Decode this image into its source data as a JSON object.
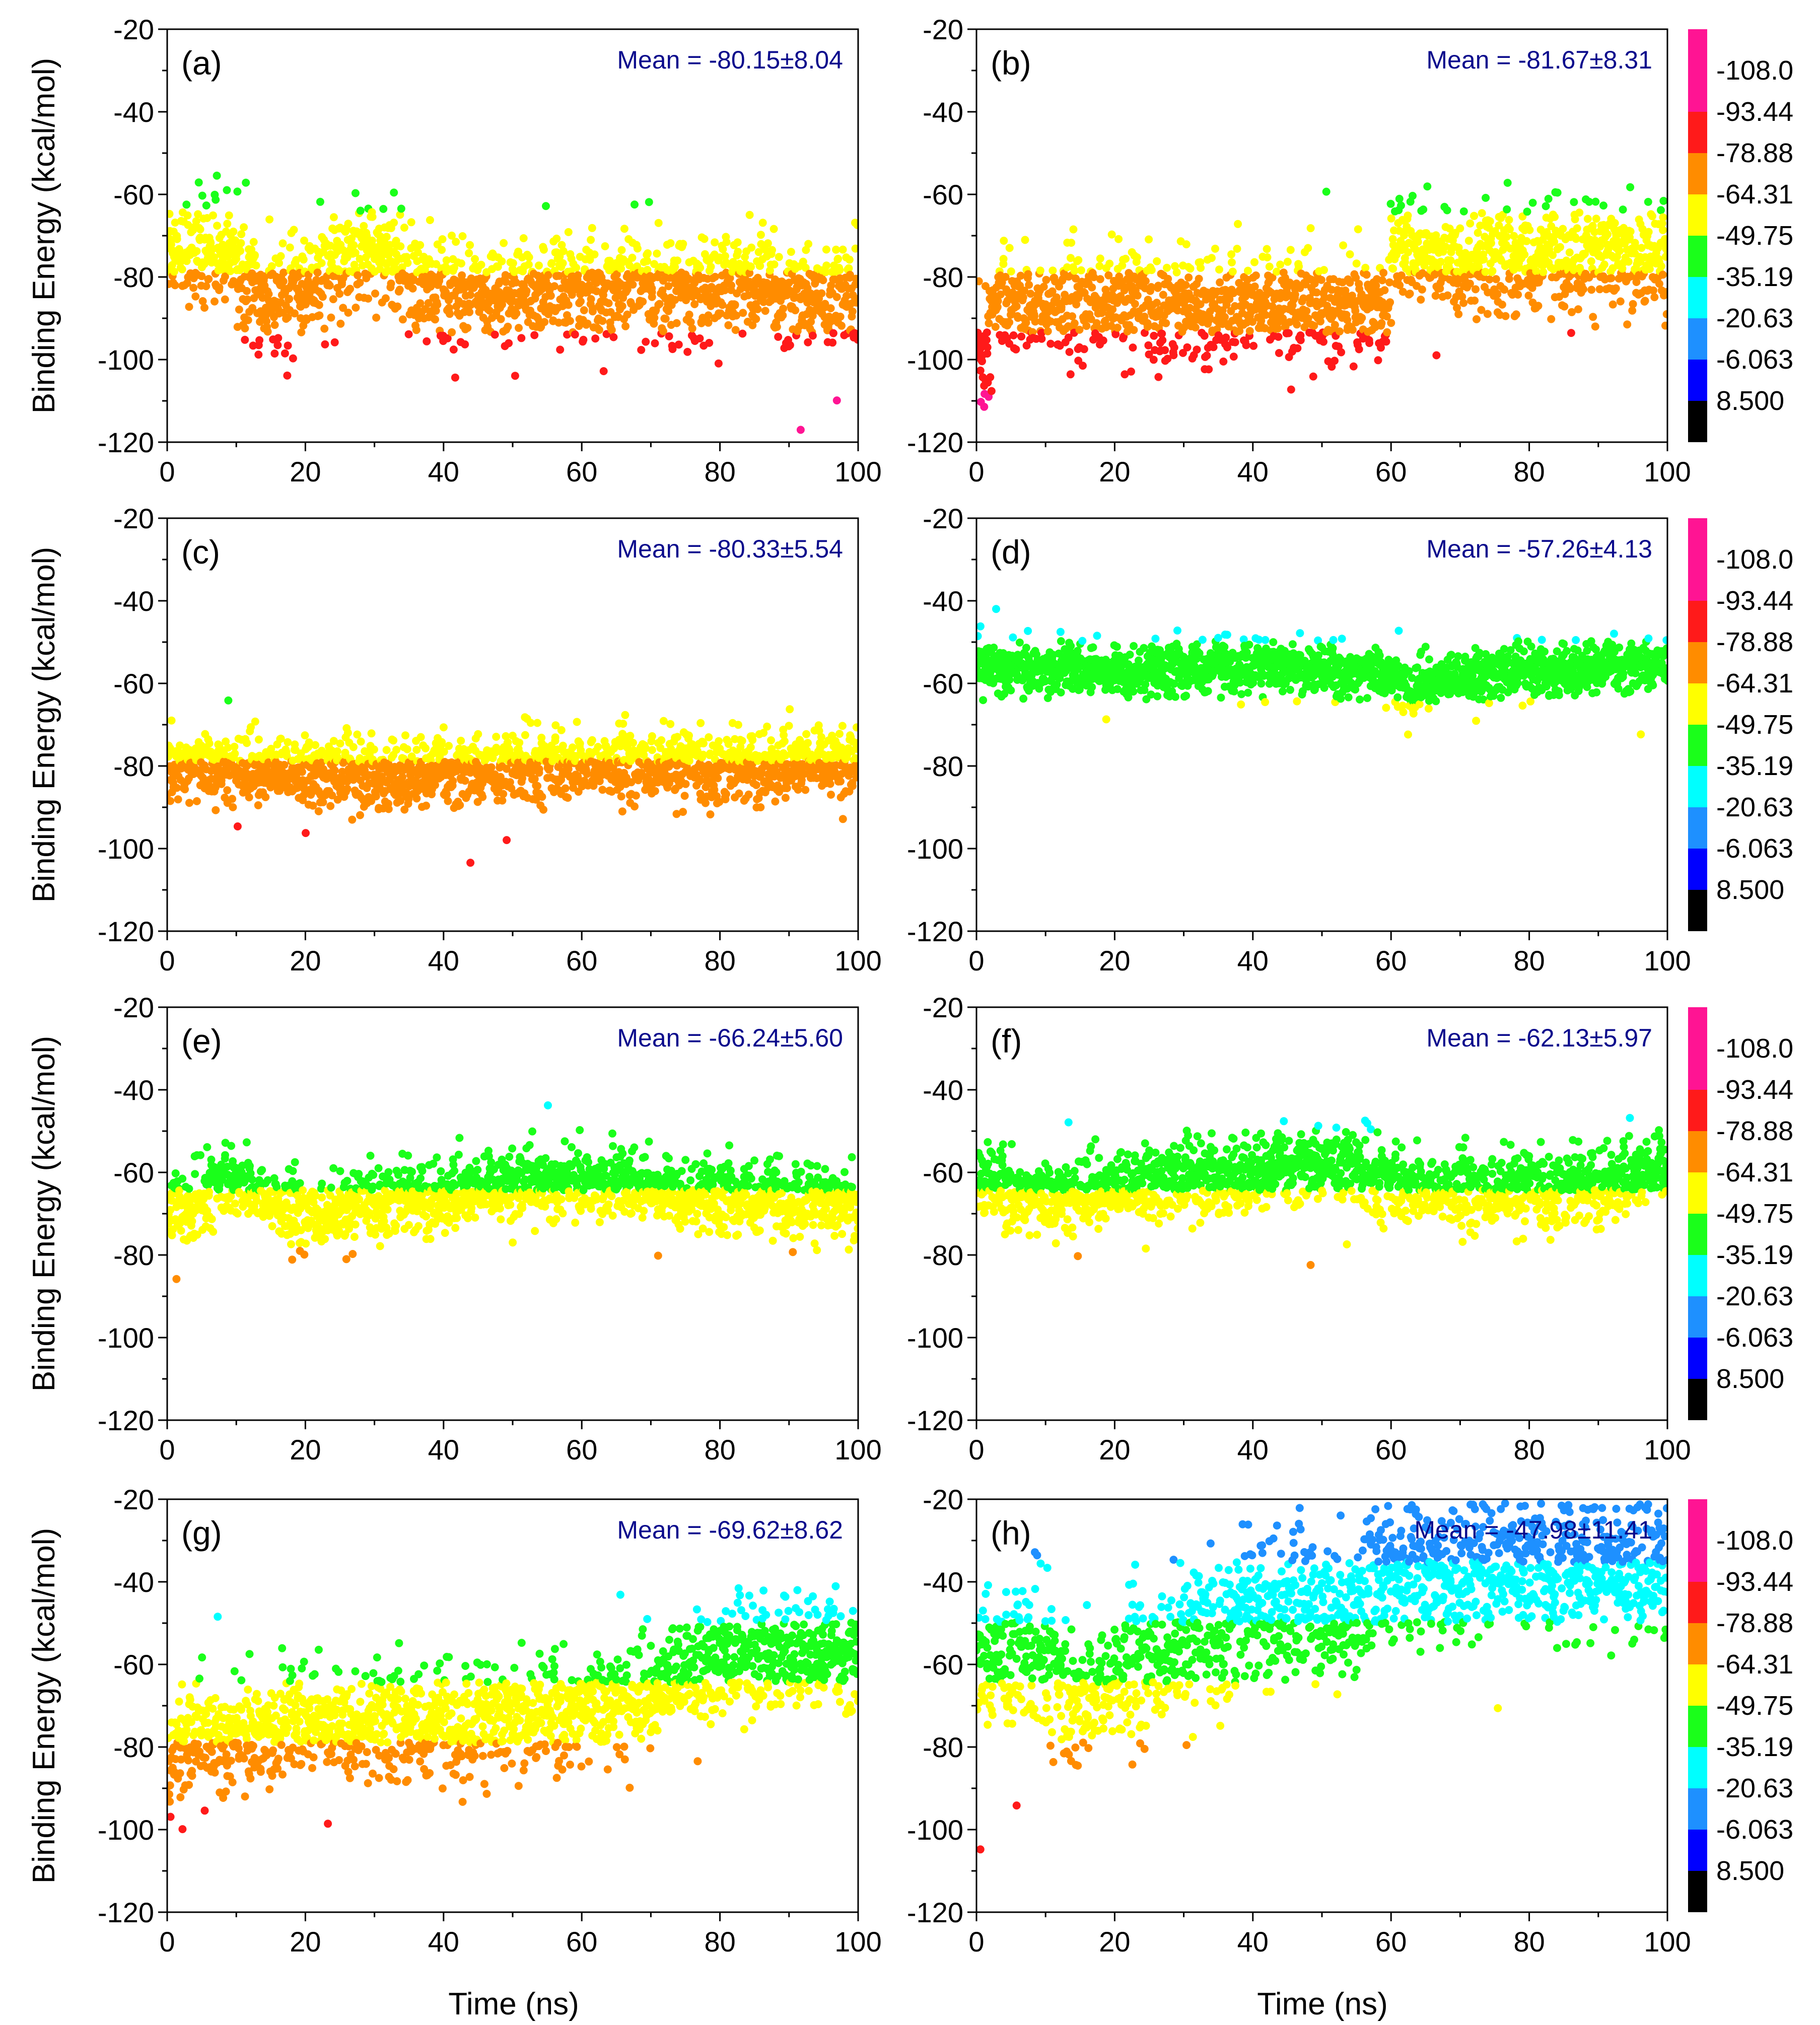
{
  "figure": {
    "x_title": "Time (ns)",
    "y_title": "Binding Energy (kcal/mol)"
  },
  "colorbar": {
    "labels": [
      "-108.0",
      "-93.44",
      "-78.88",
      "-64.31",
      "-49.75",
      "-35.19",
      "-20.63",
      "-6.063",
      "8.500"
    ],
    "colors": [
      "#ff1493",
      "#ff1a1a",
      "#ff8c00",
      "#ffff00",
      "#1aff1a",
      "#00ffff",
      "#1e90ff",
      "#0000ff",
      "#000000"
    ]
  },
  "chart_data": [
    {
      "type": "scatter",
      "panel": "(a)",
      "mean_text": "Mean = -80.15±8.04",
      "mean": -80.15,
      "std": 8.04,
      "xlim": [
        0,
        100
      ],
      "ylim": [
        -120,
        -20
      ],
      "xticks": [
        0,
        20,
        40,
        60,
        80,
        100
      ],
      "yticks": [
        -20,
        -40,
        -60,
        -80,
        -100,
        -120
      ],
      "trend": [
        [
          0,
          -72
        ],
        [
          10,
          -77
        ],
        [
          14,
          -86
        ],
        [
          20,
          -82
        ],
        [
          28,
          -74
        ],
        [
          33,
          -75
        ],
        [
          35,
          -82
        ],
        [
          45,
          -85
        ],
        [
          55,
          -84
        ],
        [
          68,
          -82
        ],
        [
          80,
          -82
        ],
        [
          90,
          -84
        ],
        [
          100,
          -84
        ]
      ]
    },
    {
      "type": "scatter",
      "panel": "(b)",
      "mean_text": "Mean = -81.67±8.31",
      "mean": -81.67,
      "std": 8.31,
      "xlim": [
        0,
        100
      ],
      "ylim": [
        -120,
        -20
      ],
      "xticks": [
        0,
        20,
        40,
        60,
        80,
        100
      ],
      "yticks": [
        -20,
        -40,
        -60,
        -80,
        -100,
        -120
      ],
      "trend": [
        [
          0,
          -95
        ],
        [
          1,
          -100
        ],
        [
          3,
          -86
        ],
        [
          6,
          -86
        ],
        [
          8,
          -88
        ],
        [
          20,
          -86
        ],
        [
          40,
          -88
        ],
        [
          50,
          -88
        ],
        [
          58,
          -86
        ],
        [
          59.5,
          -86
        ],
        [
          60.5,
          -74
        ],
        [
          70,
          -76
        ],
        [
          80,
          -76
        ],
        [
          90,
          -75
        ],
        [
          100,
          -76
        ]
      ]
    },
    {
      "type": "scatter",
      "panel": "(c)",
      "mean_text": "Mean = -80.33±5.54",
      "mean": -80.33,
      "std": 5.54,
      "xlim": [
        0,
        100
      ],
      "ylim": [
        -120,
        -20
      ],
      "xticks": [
        0,
        20,
        40,
        60,
        80,
        100
      ],
      "yticks": [
        -20,
        -40,
        -60,
        -80,
        -100,
        -120
      ],
      "trend": [
        [
          0,
          -79
        ],
        [
          20,
          -82
        ],
        [
          32,
          -82
        ],
        [
          50,
          -80
        ],
        [
          70,
          -80
        ],
        [
          80,
          -80
        ],
        [
          100,
          -80
        ]
      ]
    },
    {
      "type": "scatter",
      "panel": "(d)",
      "mean_text": "Mean = -57.26±4.13",
      "mean": -57.26,
      "std": 4.13,
      "xlim": [
        0,
        100
      ],
      "ylim": [
        -120,
        -20
      ],
      "xticks": [
        0,
        20,
        40,
        60,
        80,
        100
      ],
      "yticks": [
        -20,
        -40,
        -60,
        -80,
        -100,
        -120
      ],
      "trend": [
        [
          0,
          -56
        ],
        [
          20,
          -57
        ],
        [
          40,
          -56
        ],
        [
          58,
          -57
        ],
        [
          62,
          -60
        ],
        [
          63,
          -64
        ],
        [
          64,
          -60
        ],
        [
          80,
          -57
        ],
        [
          100,
          -55
        ]
      ]
    },
    {
      "type": "scatter",
      "panel": "(e)",
      "mean_text": "Mean = -66.24±5.60",
      "mean": -66.24,
      "std": 5.6,
      "xlim": [
        0,
        100
      ],
      "ylim": [
        -120,
        -20
      ],
      "xticks": [
        0,
        20,
        40,
        60,
        80,
        100
      ],
      "yticks": [
        -20,
        -40,
        -60,
        -80,
        -100,
        -120
      ],
      "trend": [
        [
          0,
          -66
        ],
        [
          3,
          -70
        ],
        [
          6,
          -64
        ],
        [
          10,
          -62
        ],
        [
          18,
          -70
        ],
        [
          25,
          -70
        ],
        [
          30,
          -66
        ],
        [
          40,
          -66
        ],
        [
          60,
          -62
        ],
        [
          70,
          -64
        ],
        [
          80,
          -66
        ],
        [
          100,
          -68
        ]
      ]
    },
    {
      "type": "scatter",
      "panel": "(f)",
      "mean_text": "Mean = -62.13±5.97",
      "mean": -62.13,
      "std": 5.97,
      "xlim": [
        0,
        100
      ],
      "ylim": [
        -120,
        -20
      ],
      "xticks": [
        0,
        20,
        40,
        60,
        80,
        100
      ],
      "yticks": [
        -20,
        -40,
        -60,
        -80,
        -100,
        -120
      ],
      "trend": [
        [
          0,
          -62
        ],
        [
          10,
          -66
        ],
        [
          20,
          -64
        ],
        [
          30,
          -62
        ],
        [
          40,
          -60
        ],
        [
          52,
          -57
        ],
        [
          60,
          -63
        ],
        [
          70,
          -65
        ],
        [
          80,
          -64
        ],
        [
          90,
          -63
        ],
        [
          100,
          -60
        ]
      ]
    },
    {
      "type": "scatter",
      "panel": "(g)",
      "mean_text": "Mean = -69.62±8.62",
      "mean": -69.62,
      "std": 8.62,
      "xlim": [
        0,
        100
      ],
      "ylim": [
        -120,
        -20
      ],
      "xticks": [
        0,
        20,
        40,
        60,
        80,
        100
      ],
      "yticks": [
        -20,
        -40,
        -60,
        -80,
        -100,
        -120
      ],
      "trend": [
        [
          0,
          -88
        ],
        [
          2,
          -80
        ],
        [
          10,
          -77
        ],
        [
          20,
          -74
        ],
        [
          30,
          -74
        ],
        [
          40,
          -75
        ],
        [
          50,
          -73
        ],
        [
          60,
          -70
        ],
        [
          70,
          -67
        ],
        [
          75,
          -62
        ],
        [
          85,
          -58
        ],
        [
          90,
          -56
        ],
        [
          100,
          -58
        ]
      ]
    },
    {
      "type": "scatter",
      "panel": "(h)",
      "mean_text": "Mean = -47.98±11.41",
      "mean": -47.98,
      "std": 11.41,
      "xlim": [
        0,
        100
      ],
      "ylim": [
        -120,
        -20
      ],
      "xticks": [
        0,
        20,
        40,
        60,
        80,
        100
      ],
      "yticks": [
        -20,
        -40,
        -60,
        -80,
        -100,
        -120
      ],
      "trend": [
        [
          0,
          -58
        ],
        [
          10,
          -57
        ],
        [
          13,
          -70
        ],
        [
          18,
          -66
        ],
        [
          22,
          -62
        ],
        [
          30,
          -56
        ],
        [
          40,
          -46
        ],
        [
          55,
          -46
        ],
        [
          60,
          -38
        ],
        [
          70,
          -36
        ],
        [
          80,
          -36
        ],
        [
          100,
          -38
        ]
      ]
    }
  ]
}
